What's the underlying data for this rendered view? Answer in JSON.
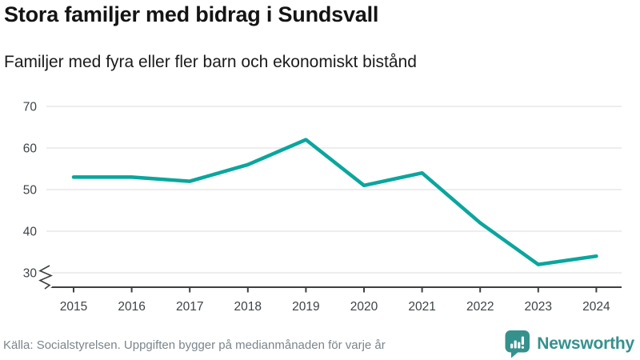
{
  "header": {
    "title": "Stora familjer med bidrag i Sundsvall",
    "subtitle": "Familjer med fyra eller fler barn och ekonomiskt bistånd"
  },
  "footer": {
    "source": "Källa: Socialstyrelsen. Uppgiften bygger på medianmånaden för varje år",
    "brand": "Newsworthy"
  },
  "colors": {
    "line": "#0aa69d",
    "brand_teal": "#35918e",
    "gridline": "#e2e2e2",
    "axis": "#3d4043",
    "tick_label": "#3e4347"
  },
  "chart_data": {
    "type": "line",
    "title": "Stora familjer med bidrag i Sundsvall",
    "subtitle": "Familjer med fyra eller fler barn och ekonomiskt bistånd",
    "x": [
      "2015",
      "2016",
      "2017",
      "2018",
      "2019",
      "2020",
      "2021",
      "2022",
      "2023",
      "2024"
    ],
    "series": [
      {
        "name": "Familjer med fyra eller fler barn och ekonomiskt bistånd",
        "values": [
          53,
          53,
          52,
          56,
          62,
          51,
          54,
          42,
          32,
          34
        ]
      }
    ],
    "xlabel": "",
    "ylabel": "",
    "yticks": [
      30,
      40,
      50,
      60,
      70
    ],
    "ylim": [
      30,
      70
    ],
    "axis_break_at_bottom": true,
    "grid": "horizontal",
    "legend": "none"
  }
}
